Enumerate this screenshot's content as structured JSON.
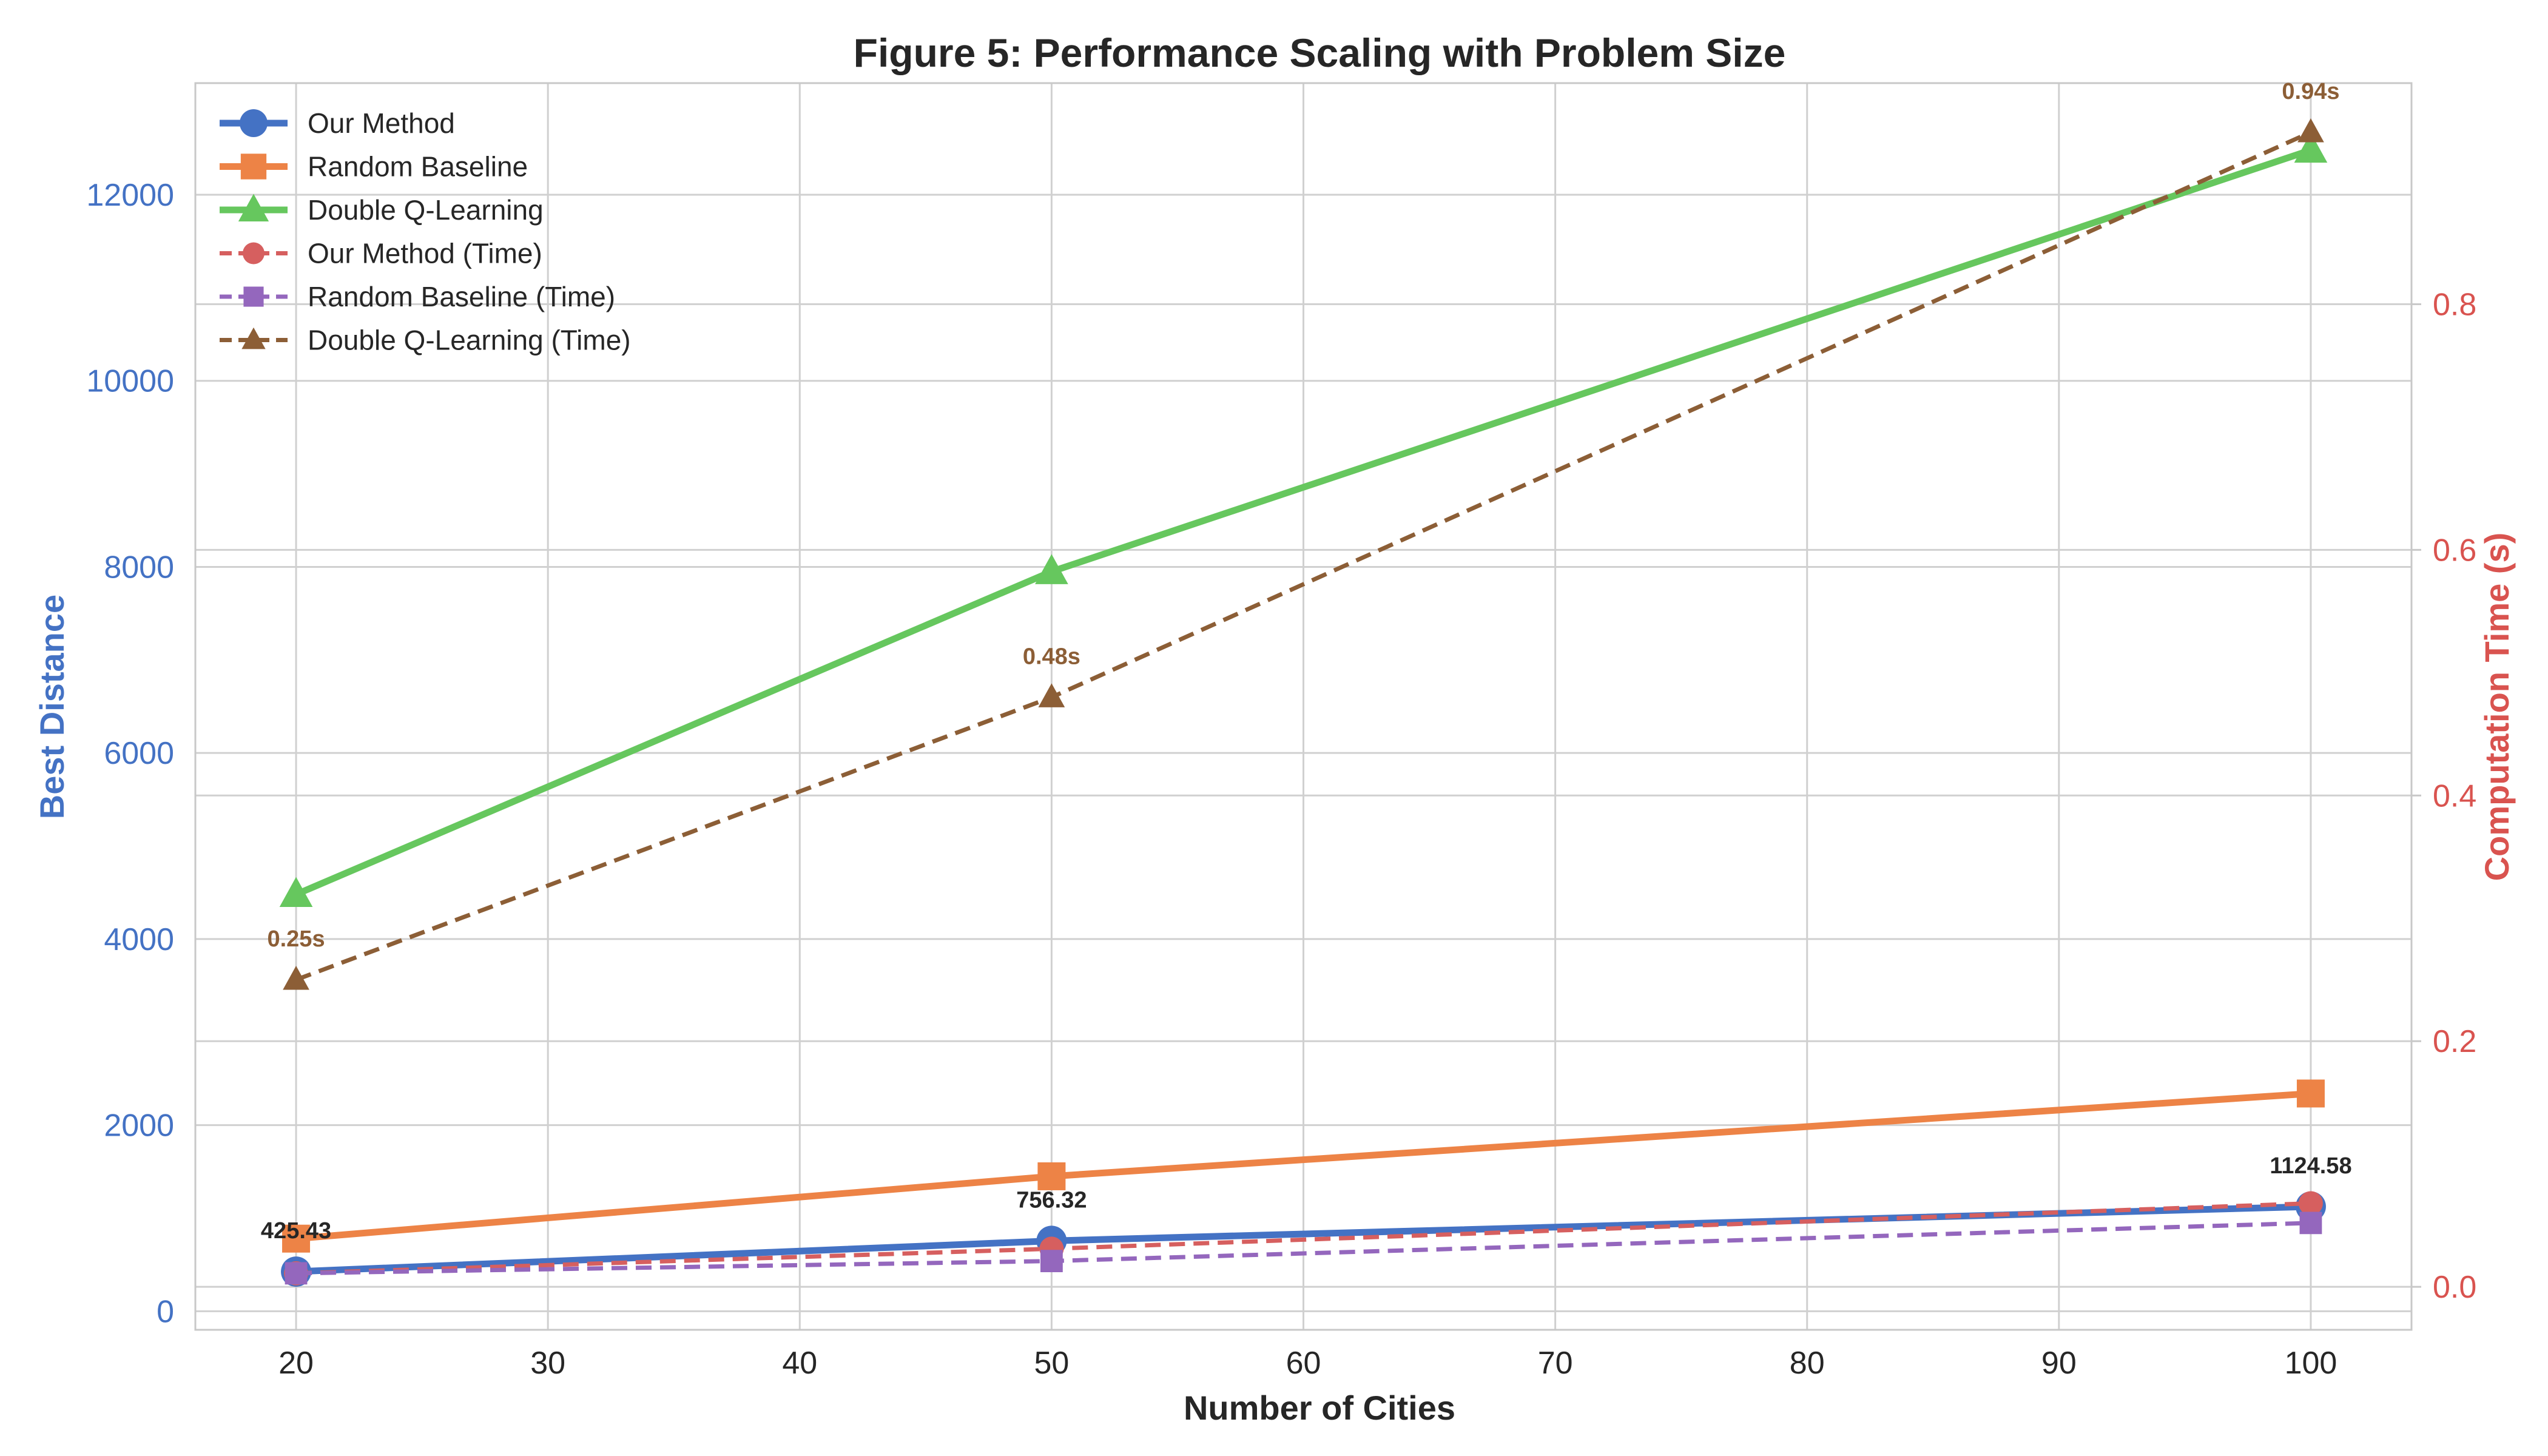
{
  "chart_data": {
    "type": "line",
    "title": "Figure 5: Performance Scaling with Problem Size",
    "xlabel": "Number of Cities",
    "ylabel_left": "Best Distance",
    "ylabel_right": "Computation Time (s)",
    "x": [
      20,
      50,
      100
    ],
    "xlim": [
      16,
      104
    ],
    "xticks": [
      20,
      30,
      40,
      50,
      60,
      70,
      80,
      90,
      100
    ],
    "ylim_left": [
      -200,
      13200
    ],
    "yticks_left": [
      0,
      2000,
      4000,
      6000,
      8000,
      10000,
      12000
    ],
    "ylim_right": [
      -0.035,
      0.98
    ],
    "yticks_right": [
      0.0,
      0.2,
      0.4,
      0.6,
      0.8
    ],
    "yticks_right_labels": [
      "0.0",
      "0.2",
      "0.4",
      "0.6",
      "0.8"
    ],
    "grid": true,
    "legend_position": "top-left",
    "colors": {
      "left_axis": "#4472c4",
      "right_axis": "#d9534f",
      "text": "#262626",
      "grid": "#d0d0d0",
      "frame": "#c8c8c8"
    },
    "series": [
      {
        "name": "Our Method",
        "axis": "left",
        "values": [
          425.43,
          756.32,
          1124.58
        ],
        "color": "#4472c4",
        "marker": "circle",
        "dash": "solid"
      },
      {
        "name": "Random Baseline",
        "axis": "left",
        "values": [
          780,
          1450,
          2340
        ],
        "color": "#ed8346",
        "marker": "square",
        "dash": "solid"
      },
      {
        "name": "Double Q-Learning",
        "axis": "left",
        "values": [
          4480,
          7950,
          12480
        ],
        "color": "#66c75e",
        "marker": "triangle",
        "dash": "solid"
      },
      {
        "name": "Our Method (Time)",
        "axis": "right",
        "values": [
          0.011,
          0.031,
          0.068
        ],
        "color": "#d65f5f",
        "marker": "circle",
        "dash": "dashed"
      },
      {
        "name": "Random Baseline (Time)",
        "axis": "right",
        "values": [
          0.011,
          0.021,
          0.052
        ],
        "color": "#9467bd",
        "marker": "square",
        "dash": "dashed"
      },
      {
        "name": "Double Q-Learning (Time)",
        "axis": "right",
        "values": [
          0.25,
          0.48,
          0.94
        ],
        "color": "#8c5e36",
        "marker": "triangle",
        "dash": "dashed"
      }
    ],
    "annotations": [
      {
        "text": "425.43",
        "x": 20,
        "y": 425.43,
        "axis": "left",
        "color": "#262626"
      },
      {
        "text": "756.32",
        "x": 50,
        "y": 756.32,
        "axis": "left",
        "color": "#262626"
      },
      {
        "text": "1124.58",
        "x": 100,
        "y": 1124.58,
        "axis": "left",
        "color": "#262626"
      },
      {
        "text": "0.25s",
        "x": 20,
        "y": 0.25,
        "axis": "right",
        "color": "#8c5e36"
      },
      {
        "text": "0.48s",
        "x": 50,
        "y": 0.48,
        "axis": "right",
        "color": "#8c5e36"
      },
      {
        "text": "0.94s",
        "x": 100,
        "y": 0.94,
        "axis": "right",
        "color": "#8c5e36"
      }
    ]
  }
}
